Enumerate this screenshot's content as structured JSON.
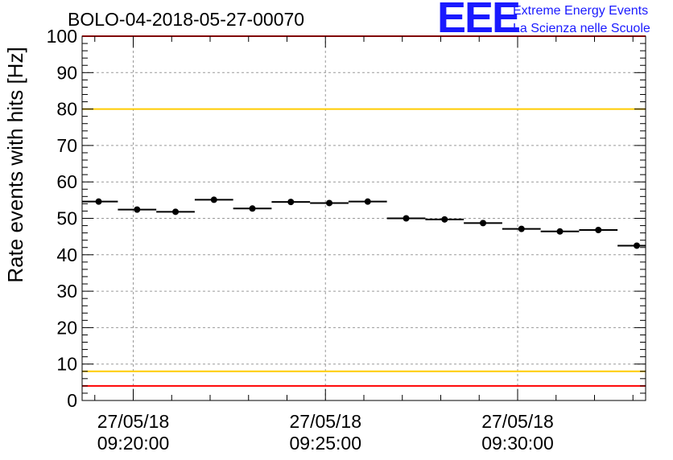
{
  "chart_data": {
    "type": "scatter",
    "title": "BOLO-04-2018-05-27-00070",
    "ylabel": "Rate events with hits [Hz]",
    "xlabel": "",
    "ylim": [
      0,
      100
    ],
    "xlim_minutes": [
      18.67,
      33.33
    ],
    "y_ticks": [
      "0",
      "10",
      "20",
      "30",
      "40",
      "50",
      "60",
      "70",
      "80",
      "90",
      "100"
    ],
    "x_ticks": [
      {
        "minute": 20,
        "line1": "27/05/18",
        "line2": "09:20:00"
      },
      {
        "minute": 25,
        "line1": "27/05/18",
        "line2": "09:25:00"
      },
      {
        "minute": 30,
        "line1": "27/05/18",
        "line2": "09:30:00"
      }
    ],
    "bin_width_minutes": 1,
    "points": [
      {
        "x": 19.1,
        "y": 54.6
      },
      {
        "x": 20.1,
        "y": 52.4
      },
      {
        "x": 21.1,
        "y": 51.8
      },
      {
        "x": 22.1,
        "y": 55.1
      },
      {
        "x": 23.1,
        "y": 52.7
      },
      {
        "x": 24.1,
        "y": 54.5
      },
      {
        "x": 25.1,
        "y": 54.2
      },
      {
        "x": 26.1,
        "y": 54.6
      },
      {
        "x": 27.1,
        "y": 50.0
      },
      {
        "x": 28.1,
        "y": 49.7
      },
      {
        "x": 29.1,
        "y": 48.7
      },
      {
        "x": 30.1,
        "y": 47.1
      },
      {
        "x": 31.1,
        "y": 46.4
      },
      {
        "x": 32.1,
        "y": 46.8
      },
      {
        "x": 33.1,
        "y": 42.5
      }
    ],
    "reference_lines": [
      {
        "y": 100,
        "color": "#ff0000"
      },
      {
        "y": 80,
        "color": "#ffcc00"
      },
      {
        "y": 8,
        "color": "#ffcc00"
      },
      {
        "y": 4,
        "color": "#ff0000"
      }
    ],
    "grid": true,
    "marker_color": "#000000"
  },
  "logo": {
    "mark": "EEE",
    "line1": "Extreme Energy Events",
    "line2": "La Scienza nelle Scuole",
    "color": "#1a1aff"
  }
}
